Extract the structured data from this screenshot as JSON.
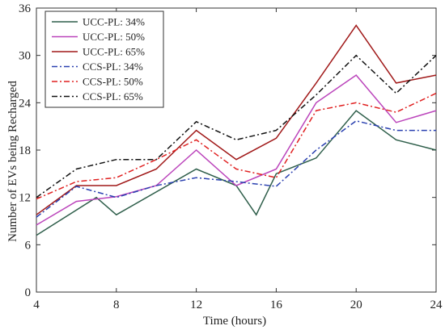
{
  "chart_data": {
    "type": "line",
    "title": "",
    "xlabel": "Time (hours)",
    "ylabel": "Number of EVs being Recharged",
    "xlim": [
      4,
      24
    ],
    "ylim": [
      0,
      36
    ],
    "xticks": [
      4,
      8,
      12,
      16,
      20,
      24
    ],
    "yticks": [
      0,
      6,
      12,
      18,
      24,
      30,
      36
    ],
    "grid": false,
    "legend_position": "top-left",
    "series": [
      {
        "name": "UCC-PL: 34%",
        "color": "#2e5e4a",
        "dash": "solid",
        "x": [
          4,
          7,
          8,
          12,
          14,
          15,
          16,
          18,
          20,
          22,
          24
        ],
        "y": [
          7.2,
          12.0,
          9.8,
          15.6,
          13.5,
          9.8,
          15.0,
          17.0,
          23.0,
          19.3,
          18.0
        ]
      },
      {
        "name": "UCC-PL: 50%",
        "color": "#bb44bb",
        "dash": "solid",
        "x": [
          4,
          6,
          8,
          10,
          12,
          14,
          16,
          18,
          20,
          22,
          24
        ],
        "y": [
          8.5,
          11.5,
          12.1,
          13.5,
          18.0,
          13.5,
          15.6,
          24.0,
          27.5,
          21.5,
          23.0
        ]
      },
      {
        "name": "UCC-PL: 65%",
        "color": "#a01818",
        "dash": "solid",
        "x": [
          4,
          6,
          8,
          10,
          12,
          14,
          16,
          18,
          20,
          22,
          24
        ],
        "y": [
          9.8,
          13.5,
          13.5,
          15.6,
          20.5,
          16.8,
          19.5,
          26.5,
          33.8,
          26.5,
          27.5
        ]
      },
      {
        "name": "CCS-PL: 34%",
        "color": "#2a40b0",
        "dash": "dashdot",
        "x": [
          4,
          6,
          8,
          10,
          12,
          14,
          16,
          18,
          20,
          22,
          24
        ],
        "y": [
          9.5,
          13.4,
          12.0,
          13.5,
          14.5,
          14.0,
          13.4,
          18.0,
          21.7,
          20.5,
          20.5
        ]
      },
      {
        "name": "CCS-PL: 50%",
        "color": "#e02020",
        "dash": "dashdot",
        "x": [
          4,
          6,
          8,
          10,
          12,
          14,
          16,
          18,
          20,
          22,
          24
        ],
        "y": [
          11.8,
          14.0,
          14.5,
          16.8,
          19.3,
          15.6,
          14.5,
          23.0,
          24.0,
          22.8,
          25.2
        ]
      },
      {
        "name": "CCS-PL: 65%",
        "color": "#111111",
        "dash": "dashdot",
        "x": [
          4,
          6,
          8,
          10,
          12,
          14,
          16,
          18,
          20,
          22,
          24
        ],
        "y": [
          12.0,
          15.6,
          16.8,
          16.8,
          21.6,
          19.3,
          20.5,
          25.0,
          30.0,
          25.2,
          30.0
        ]
      }
    ]
  }
}
